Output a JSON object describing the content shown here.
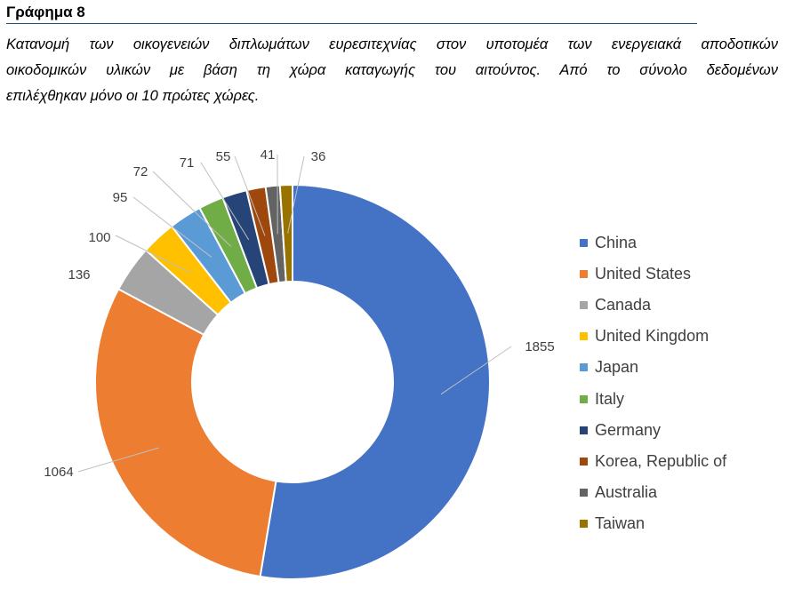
{
  "figure": {
    "heading": "Γράφημα 8",
    "caption_lines": [
      "Κατανομή των οικογενειών διπλωμάτων ευρεσιτεχνίας στον υποτομέα των ενεργειακά αποδοτικών",
      "οικοδομικών υλικών με βάση τη χώρα καταγωγής του αιτούντος. Από το σύνολο δεδομένων",
      "επιλέχθηκαν μόνο οι 10 πρώτες χώρες."
    ]
  },
  "chart_data": {
    "type": "pie",
    "variant": "donut",
    "title": "",
    "categories": [
      "China",
      "United States",
      "Canada",
      "United Kingdom",
      "Japan",
      "Italy",
      "Germany",
      "Korea, Republic of",
      "Australia",
      "Taiwan"
    ],
    "values": [
      1855,
      1064,
      136,
      100,
      95,
      72,
      71,
      55,
      41,
      36
    ],
    "colors": [
      "#4472c4",
      "#ed7d31",
      "#a5a5a5",
      "#ffc000",
      "#5b9bd5",
      "#70ad47",
      "#264478",
      "#9e480e",
      "#636363",
      "#997300"
    ],
    "legend_position": "right"
  }
}
